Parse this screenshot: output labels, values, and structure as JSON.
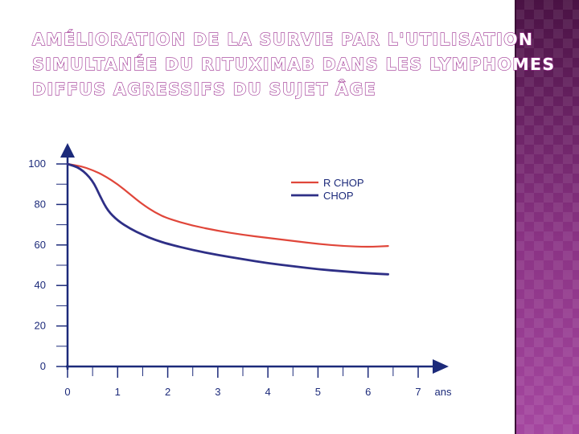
{
  "slide": {
    "title_lines": [
      "Amélioration de la survie par l'utilisation",
      "simultanée du rituximab dans les lymphomes",
      "diffus agressifs du sujet âge"
    ]
  },
  "colors": {
    "title_outline": "#9b2c8f",
    "panel": "#7a2a76",
    "axis": "#1c2a7a",
    "r_chop": "#e0463a",
    "chop": "#2e2f86"
  },
  "chart_data": {
    "type": "line",
    "title": "",
    "xlabel": "ans",
    "ylabel": "",
    "xlim": [
      0,
      7
    ],
    "ylim": [
      0,
      100
    ],
    "x_ticks": [
      "0",
      "1",
      "2",
      "3",
      "4",
      "5",
      "6",
      "7"
    ],
    "y_ticks": [
      "0",
      "20",
      "40",
      "60",
      "80",
      "100"
    ],
    "legend_position": "top-right",
    "grid": false,
    "series": [
      {
        "name": "R CHOP",
        "color": "#e0463a",
        "x": [
          0,
          0.25,
          0.5,
          0.75,
          1.0,
          1.25,
          1.5,
          1.75,
          2.0,
          2.5,
          3.0,
          3.5,
          4.0,
          4.5,
          5.0,
          5.5,
          6.0,
          6.4
        ],
        "y": [
          100,
          99,
          97,
          94,
          90,
          85,
          80,
          76,
          73,
          69.5,
          67,
          65,
          63.5,
          62,
          60.5,
          59.5,
          59,
          59.5
        ]
      },
      {
        "name": "CHOP",
        "color": "#2e2f86",
        "x": [
          0,
          0.25,
          0.5,
          0.65,
          0.8,
          1.0,
          1.25,
          1.5,
          1.75,
          2.0,
          2.5,
          3.0,
          3.5,
          4.0,
          4.5,
          5.0,
          5.5,
          6.0,
          6.4
        ],
        "y": [
          100,
          98,
          92,
          84,
          77,
          72,
          68,
          65,
          62.5,
          60.5,
          57.5,
          55,
          53,
          51,
          49.5,
          48,
          47,
          46,
          45.5
        ]
      }
    ]
  }
}
